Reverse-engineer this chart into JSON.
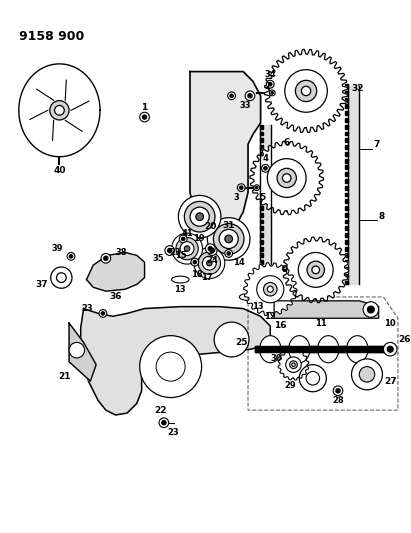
{
  "title": "9158 900",
  "bg_color": "#ffffff",
  "fig_width": 4.11,
  "fig_height": 5.33,
  "title_fontsize": 9,
  "title_fontweight": "bold"
}
